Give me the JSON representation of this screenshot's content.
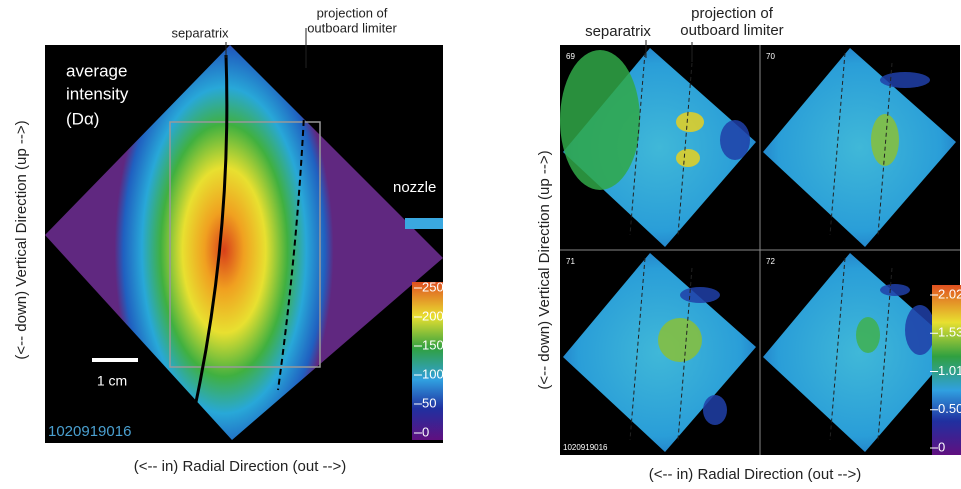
{
  "left_panel": {
    "separatrix_label": "separatrix",
    "limiter_label": [
      "projection of",
      "outboard limiter"
    ],
    "intensity_label": [
      "average",
      "intensity",
      "(Dα)"
    ],
    "nozzle_label": "nozzle",
    "scale_label": "1 cm",
    "shot_id": "1020919016",
    "colorbar_labels": [
      "250",
      "200",
      "150",
      "100",
      "50",
      "0"
    ],
    "y_axis_label": "(<-- down) Vertical Direction  (up -->)",
    "x_axis_label": "(<-- in) Radial Direction  (out -->)"
  },
  "right_panel": {
    "separatrix_label": "separatrix",
    "limiter_label": [
      "projection of",
      "outboard limiter"
    ],
    "frame_labels": [
      "69",
      "70",
      "71",
      "72"
    ],
    "shot_id": "1020919016",
    "colorbar_labels": [
      "2.02",
      "1.53",
      "1.01",
      "0.50",
      "0"
    ],
    "y_axis_label": "(<-- down) Vertical Direction  (up -->)",
    "x_axis_label": "(<-- in) Radial Direction  (out -->)"
  }
}
